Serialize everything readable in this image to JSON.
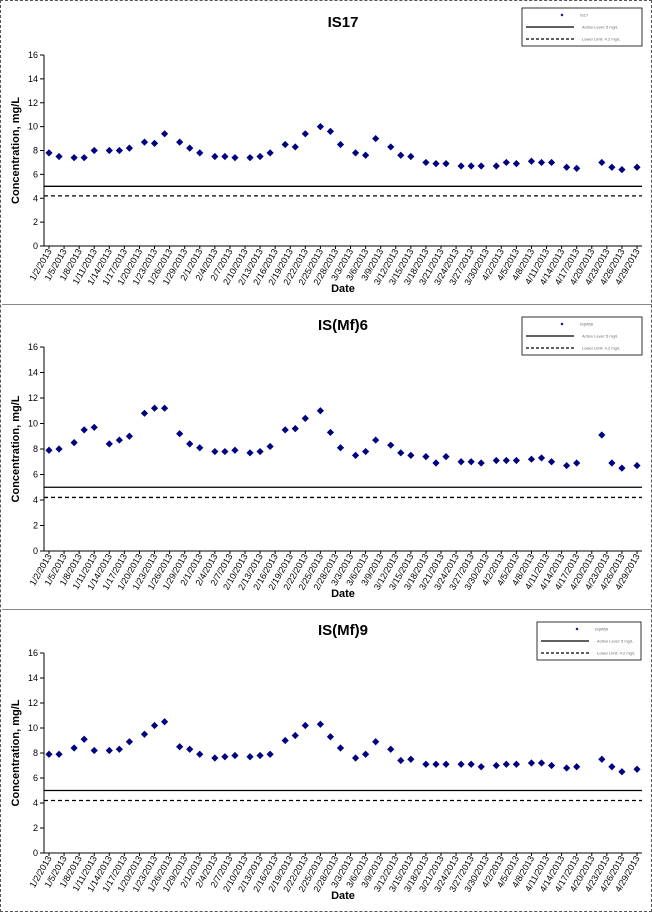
{
  "chart_data": [
    {
      "type": "scatter",
      "title": "IS17",
      "xlabel": "Date",
      "ylabel": "Concentration, mg/L",
      "ylim": [
        0,
        16
      ],
      "yticks": [
        0,
        2,
        4,
        6,
        8,
        10,
        12,
        14,
        16
      ],
      "x_tick_labels": [
        "1/2/2013",
        "1/5/2013",
        "1/8/2013",
        "1/11/2013",
        "1/14/2013",
        "1/17/2013",
        "1/20/2013",
        "1/23/2013",
        "1/26/2013",
        "1/29/2013",
        "2/1/2013",
        "2/4/2013",
        "2/7/2013",
        "2/10/2013",
        "2/13/2013",
        "2/16/2013",
        "2/19/2013",
        "2/22/2013",
        "2/25/2013",
        "2/28/2013",
        "3/3/2013",
        "3/6/2013",
        "3/9/2013",
        "3/12/2013",
        "3/15/2013",
        "3/18/2013",
        "3/21/2013",
        "3/24/2013",
        "3/27/2013",
        "3/30/2013",
        "4/2/2013",
        "4/5/2013",
        "4/8/2013",
        "4/11/2013",
        "4/14/2013",
        "4/17/2013",
        "4/20/2013",
        "4/23/2013",
        "4/26/2013",
        "4/29/2013"
      ],
      "legend": {
        "position": "top-right",
        "entries": [
          "IS17",
          "Action Level: 5 mg/L",
          "Lower Limit: 4.2 mg/L"
        ]
      },
      "grid": false,
      "series": [
        {
          "name": "IS17",
          "marker": "diamond",
          "x": [
            "1/2/2013",
            "1/4/2013",
            "1/7/2013",
            "1/9/2013",
            "1/11/2013",
            "1/14/2013",
            "1/16/2013",
            "1/18/2013",
            "1/21/2013",
            "1/23/2013",
            "1/25/2013",
            "1/28/2013",
            "1/30/2013",
            "2/1/2013",
            "2/4/2013",
            "2/6/2013",
            "2/8/2013",
            "2/11/2013",
            "2/13/2013",
            "2/15/2013",
            "2/18/2013",
            "2/20/2013",
            "2/22/2013",
            "2/25/2013",
            "2/27/2013",
            "3/1/2013",
            "3/4/2013",
            "3/6/2013",
            "3/8/2013",
            "3/11/2013",
            "3/13/2013",
            "3/15/2013",
            "3/18/2013",
            "3/20/2013",
            "3/22/2013",
            "3/25/2013",
            "3/27/2013",
            "3/29/2013",
            "4/1/2013",
            "4/3/2013",
            "4/5/2013",
            "4/8/2013",
            "4/10/2013",
            "4/12/2013",
            "4/15/2013",
            "4/17/2013",
            "4/22/2013",
            "4/24/2013",
            "4/26/2013",
            "4/29/2013"
          ],
          "values": [
            7.8,
            7.5,
            7.4,
            7.4,
            8.0,
            8.0,
            8.0,
            8.2,
            8.7,
            8.6,
            9.4,
            8.7,
            8.2,
            7.8,
            7.5,
            7.5,
            7.4,
            7.4,
            7.5,
            7.8,
            8.5,
            8.3,
            9.4,
            10.0,
            9.6,
            8.5,
            7.8,
            7.6,
            9.0,
            8.3,
            7.6,
            7.5,
            7.0,
            6.9,
            6.9,
            6.7,
            6.7,
            6.7,
            6.7,
            7.0,
            6.9,
            7.1,
            7.0,
            7.0,
            6.6,
            6.5,
            7.0,
            6.6,
            6.4,
            6.6
          ]
        },
        {
          "name": "Action Level: 5 mg/L",
          "line": "solid",
          "constant": 5.0
        },
        {
          "name": "Lower Limit: 4.2 mg/L",
          "line": "dashed",
          "constant": 4.2
        }
      ]
    },
    {
      "type": "scatter",
      "title": "IS(Mf)6",
      "xlabel": "Date",
      "ylabel": "Concentration, mg/L",
      "ylim": [
        0,
        16
      ],
      "yticks": [
        0,
        2,
        4,
        6,
        8,
        10,
        12,
        14,
        16
      ],
      "x_tick_labels": [
        "1/2/2013",
        "1/5/2013",
        "1/8/2013",
        "1/11/2013",
        "1/14/2013",
        "1/17/2013",
        "1/20/2013",
        "1/23/2013",
        "1/26/2013",
        "1/29/2013",
        "2/1/2013",
        "2/4/2013",
        "2/7/2013",
        "2/10/2013",
        "2/13/2013",
        "2/16/2013",
        "2/19/2013",
        "2/22/2013",
        "2/25/2013",
        "2/28/2013",
        "3/3/2013",
        "3/6/2013",
        "3/9/2013",
        "3/12/2013",
        "3/15/2013",
        "3/18/2013",
        "3/21/2013",
        "3/24/2013",
        "3/27/2013",
        "3/30/2013",
        "4/2/2013",
        "4/5/2013",
        "4/8/2013",
        "4/11/2013",
        "4/14/2013",
        "4/17/2013",
        "4/20/2013",
        "4/23/2013",
        "4/26/2013",
        "4/29/2013"
      ],
      "legend": {
        "position": "top-right",
        "entries": [
          "IS(Mf)6",
          "Action Level: 5 mg/L",
          "Lower Limit: 4.2 mg/L"
        ]
      },
      "grid": false,
      "series": [
        {
          "name": "IS(Mf)6",
          "marker": "diamond",
          "x": [
            "1/2/2013",
            "1/4/2013",
            "1/7/2013",
            "1/9/2013",
            "1/11/2013",
            "1/14/2013",
            "1/16/2013",
            "1/18/2013",
            "1/21/2013",
            "1/23/2013",
            "1/25/2013",
            "1/28/2013",
            "1/30/2013",
            "2/1/2013",
            "2/4/2013",
            "2/6/2013",
            "2/8/2013",
            "2/11/2013",
            "2/13/2013",
            "2/15/2013",
            "2/18/2013",
            "2/20/2013",
            "2/22/2013",
            "2/25/2013",
            "2/27/2013",
            "3/1/2013",
            "3/4/2013",
            "3/6/2013",
            "3/8/2013",
            "3/11/2013",
            "3/13/2013",
            "3/15/2013",
            "3/18/2013",
            "3/20/2013",
            "3/22/2013",
            "3/25/2013",
            "3/27/2013",
            "3/29/2013",
            "4/1/2013",
            "4/3/2013",
            "4/5/2013",
            "4/8/2013",
            "4/10/2013",
            "4/12/2013",
            "4/15/2013",
            "4/17/2013",
            "4/22/2013",
            "4/24/2013",
            "4/26/2013",
            "4/29/2013"
          ],
          "values": [
            7.9,
            8.0,
            8.5,
            9.5,
            9.7,
            8.4,
            8.7,
            9.0,
            10.8,
            11.2,
            11.2,
            9.2,
            8.4,
            8.1,
            7.8,
            7.8,
            7.9,
            7.7,
            7.8,
            8.2,
            9.5,
            9.6,
            10.4,
            11.0,
            9.3,
            8.1,
            7.5,
            7.8,
            8.7,
            8.3,
            7.7,
            7.5,
            7.4,
            6.9,
            7.4,
            7.0,
            7.0,
            6.9,
            7.1,
            7.1,
            7.1,
            7.2,
            7.3,
            7.0,
            6.7,
            6.9,
            9.1,
            6.9,
            6.5,
            6.7
          ]
        },
        {
          "name": "Action Level: 5 mg/L",
          "line": "solid",
          "constant": 5.0
        },
        {
          "name": "Lower Limit: 4.2 mg/L",
          "line": "dashed",
          "constant": 4.2
        }
      ]
    },
    {
      "type": "scatter",
      "title": "IS(Mf)9",
      "xlabel": "Date",
      "ylabel": "Concentration, mg/L",
      "ylim": [
        0,
        16
      ],
      "yticks": [
        0,
        2,
        4,
        6,
        8,
        10,
        12,
        14,
        16
      ],
      "x_tick_labels": [
        "1/2/2013",
        "1/5/2013",
        "1/8/2013",
        "1/11/2013",
        "1/14/2013",
        "1/17/2013",
        "1/20/2013",
        "1/23/2013",
        "1/26/2013",
        "1/29/2013",
        "2/1/2013",
        "2/4/2013",
        "2/7/2013",
        "2/10/2013",
        "2/13/2013",
        "2/16/2013",
        "2/19/2013",
        "2/22/2013",
        "2/25/2013",
        "2/28/2013",
        "3/3/2013",
        "3/6/2013",
        "3/9/2013",
        "3/12/2013",
        "3/15/2013",
        "3/18/2013",
        "3/21/2013",
        "3/24/2013",
        "3/27/2013",
        "3/30/2013",
        "4/2/2013",
        "4/5/2013",
        "4/8/2013",
        "4/11/2013",
        "4/14/2013",
        "4/17/2013",
        "4/20/2013",
        "4/23/2013",
        "4/26/2013",
        "4/29/2013"
      ],
      "legend": {
        "position": "top-right",
        "entries": [
          "IS(Mf)9",
          "Action Level: 5 mg/L",
          "Lower Limit: 4.2 mg/L"
        ]
      },
      "grid": false,
      "series": [
        {
          "name": "IS(Mf)9",
          "marker": "diamond",
          "x": [
            "1/2/2013",
            "1/4/2013",
            "1/7/2013",
            "1/9/2013",
            "1/11/2013",
            "1/14/2013",
            "1/16/2013",
            "1/18/2013",
            "1/21/2013",
            "1/23/2013",
            "1/25/2013",
            "1/28/2013",
            "1/30/2013",
            "2/1/2013",
            "2/4/2013",
            "2/6/2013",
            "2/8/2013",
            "2/11/2013",
            "2/13/2013",
            "2/15/2013",
            "2/18/2013",
            "2/20/2013",
            "2/22/2013",
            "2/25/2013",
            "2/27/2013",
            "3/1/2013",
            "3/4/2013",
            "3/6/2013",
            "3/8/2013",
            "3/11/2013",
            "3/13/2013",
            "3/15/2013",
            "3/18/2013",
            "3/20/2013",
            "3/22/2013",
            "3/25/2013",
            "3/27/2013",
            "3/29/2013",
            "4/1/2013",
            "4/3/2013",
            "4/5/2013",
            "4/8/2013",
            "4/10/2013",
            "4/12/2013",
            "4/15/2013",
            "4/17/2013",
            "4/22/2013",
            "4/24/2013",
            "4/26/2013",
            "4/29/2013"
          ],
          "values": [
            7.9,
            7.9,
            8.4,
            9.1,
            8.2,
            8.2,
            8.3,
            8.9,
            9.5,
            10.2,
            10.5,
            8.5,
            8.3,
            7.9,
            7.6,
            7.7,
            7.8,
            7.7,
            7.8,
            7.9,
            9.0,
            9.4,
            10.2,
            10.3,
            9.3,
            8.4,
            7.6,
            7.9,
            8.9,
            8.3,
            7.4,
            7.5,
            7.1,
            7.1,
            7.1,
            7.1,
            7.1,
            6.9,
            7.0,
            7.1,
            7.1,
            7.2,
            7.2,
            7.0,
            6.8,
            6.9,
            7.5,
            6.9,
            6.5,
            6.7
          ]
        },
        {
          "name": "Action Level: 5 mg/L",
          "line": "solid",
          "constant": 5.0
        },
        {
          "name": "Lower Limit: 4.2 mg/L",
          "line": "dashed",
          "constant": 4.2
        }
      ]
    }
  ]
}
